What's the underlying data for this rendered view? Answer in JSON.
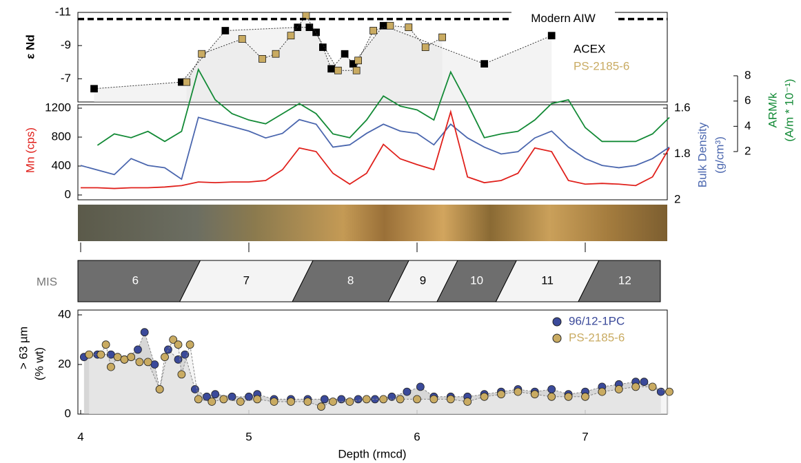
{
  "chart_data": [
    {
      "type": "line",
      "ylabel": "ε Nd",
      "xlim": [
        4,
        7.5
      ],
      "ylim": [
        -5.6,
        -11
      ],
      "yticks": [
        -11,
        -9,
        -7
      ],
      "reference_line": {
        "value": -10.6,
        "label": "Modern AIW"
      },
      "series": [
        {
          "name": "ACEX",
          "color": "#000000",
          "x": [
            4.08,
            4.6,
            4.86,
            5.29,
            5.36,
            5.4,
            5.44,
            5.49,
            5.57,
            5.62,
            5.8,
            6.4,
            6.8
          ],
          "values": [
            -6.4,
            -6.8,
            -9.9,
            -10.1,
            -10.1,
            -9.8,
            -8.9,
            -7.6,
            -8.5,
            -7.9,
            -10.2,
            -7.9,
            -9.6
          ]
        },
        {
          "name": "PS-2185-6",
          "color": "#c9ab62",
          "x": [
            4.63,
            4.72,
            4.96,
            5.08,
            5.16,
            5.25,
            5.34,
            5.53,
            5.64,
            5.65,
            5.74,
            5.84,
            5.95,
            6.05,
            6.15
          ],
          "values": [
            -6.8,
            -8.5,
            -9.4,
            -8.2,
            -8.5,
            -9.6,
            -10.8,
            -7.5,
            -7.5,
            -8.1,
            -9.9,
            -10.2,
            -10.1,
            -8.9,
            -9.5
          ]
        }
      ]
    },
    {
      "type": "multiline",
      "xlim": [
        4,
        7.5
      ],
      "x": [
        4.0,
        4.1,
        4.2,
        4.3,
        4.4,
        4.5,
        4.6,
        4.7,
        4.8,
        4.9,
        5.0,
        5.1,
        5.2,
        5.3,
        5.4,
        5.5,
        5.6,
        5.7,
        5.8,
        5.9,
        6.0,
        6.1,
        6.2,
        6.3,
        6.4,
        6.5,
        6.6,
        6.7,
        6.8,
        6.9,
        7.0,
        7.1,
        7.2,
        7.3,
        7.4,
        7.5
      ],
      "ylabel": "Mn (cps)",
      "ylim": [
        0,
        1200
      ],
      "yticks": [
        0,
        400,
        800,
        1200
      ],
      "y2label": [
        "Bulk Density",
        "(g/cm³)"
      ],
      "y2lim": [
        2.0,
        1.6
      ],
      "y2ticks": [
        1.6,
        1.8,
        2
      ],
      "y3label": [
        "ARM/k",
        "(A/m * 10⁻¹)"
      ],
      "y3lim": [
        2,
        8
      ],
      "y3ticks": [
        2,
        4,
        6,
        8
      ],
      "series": [
        {
          "name": "ARM/k",
          "color": "#138a36",
          "axis": "y3",
          "values": [
            null,
            2.5,
            3.4,
            3.1,
            3.6,
            2.8,
            3.6,
            8.5,
            6.1,
            5.0,
            4.5,
            4.2,
            5.0,
            5.8,
            5.0,
            3.4,
            3.1,
            4.5,
            6.4,
            5.6,
            5.3,
            4.5,
            8.3,
            5.8,
            3.1,
            3.4,
            3.6,
            4.5,
            5.8,
            6.1,
            3.9,
            2.8,
            2.8,
            2.8,
            3.4,
            4.7
          ]
        },
        {
          "name": "Bulk Density",
          "color": "#4a66ae",
          "axis": "y2",
          "values": [
            1.85,
            1.87,
            1.89,
            1.82,
            1.85,
            1.86,
            1.91,
            1.64,
            1.66,
            1.68,
            1.7,
            1.73,
            1.71,
            1.65,
            1.67,
            1.77,
            1.76,
            1.71,
            1.67,
            1.7,
            1.71,
            1.76,
            1.67,
            1.73,
            1.77,
            1.8,
            1.79,
            1.73,
            1.7,
            1.77,
            1.82,
            1.85,
            1.86,
            1.85,
            1.82,
            1.77
          ]
        },
        {
          "name": "Mn (cps)",
          "color": "#e0201b",
          "axis": "y",
          "values": [
            100,
            100,
            90,
            100,
            100,
            110,
            130,
            180,
            170,
            180,
            180,
            200,
            350,
            650,
            600,
            300,
            150,
            300,
            700,
            500,
            420,
            350,
            1150,
            250,
            170,
            200,
            300,
            650,
            600,
            200,
            150,
            160,
            150,
            130,
            250,
            650
          ]
        }
      ]
    },
    {
      "type": "band",
      "label": "MIS",
      "stages": [
        "6",
        "7",
        "8",
        "9",
        "10",
        "11",
        "12"
      ],
      "boundaries": [
        4,
        4.65,
        5.32,
        5.89,
        6.18,
        6.53,
        7.02,
        7.45
      ]
    },
    {
      "type": "scatter",
      "xlabel": "Depth (rmcd)",
      "ylabel": [
        "> 63 µm",
        "(% wt)"
      ],
      "xlim": [
        4,
        7.5
      ],
      "xticks": [
        4,
        5,
        6,
        7
      ],
      "ylim": [
        0,
        40
      ],
      "yticks": [
        0,
        20,
        40
      ],
      "series": [
        {
          "name": "96/12-1PC",
          "color": "#3b4a9a",
          "x": [
            4.02,
            4.1,
            4.18,
            4.26,
            4.34,
            4.38,
            4.44,
            4.47,
            4.52,
            4.58,
            4.62,
            4.68,
            4.75,
            4.8,
            4.9,
            5.0,
            5.05,
            5.15,
            5.25,
            5.35,
            5.45,
            5.55,
            5.65,
            5.75,
            5.85,
            5.94,
            6.02,
            6.1,
            6.2,
            6.3,
            6.4,
            6.5,
            6.6,
            6.7,
            6.8,
            6.9,
            7.0,
            7.1,
            7.2,
            7.3,
            7.35,
            7.45
          ],
          "values": [
            23,
            24,
            24,
            22,
            26,
            33,
            20,
            10,
            26,
            22,
            24,
            10,
            7,
            8,
            7,
            7,
            8,
            6,
            6,
            6,
            6,
            6,
            6,
            6,
            7,
            9,
            11,
            7,
            7,
            7,
            8,
            9,
            10,
            9,
            10,
            8,
            9,
            11,
            12,
            13,
            13,
            9
          ]
        },
        {
          "name": "PS-2185-6",
          "color": "#c9ab62",
          "x": [
            4.05,
            4.12,
            4.15,
            4.18,
            4.22,
            4.26,
            4.3,
            4.35,
            4.4,
            4.47,
            4.5,
            4.55,
            4.58,
            4.6,
            4.65,
            4.7,
            4.78,
            4.85,
            4.95,
            5.05,
            5.15,
            5.25,
            5.35,
            5.43,
            5.5,
            5.6,
            5.7,
            5.8,
            5.9,
            6.0,
            6.1,
            6.2,
            6.3,
            6.4,
            6.5,
            6.6,
            6.7,
            6.8,
            6.9,
            7.0,
            7.1,
            7.2,
            7.3,
            7.4,
            7.5
          ],
          "values": [
            24,
            24,
            28,
            19,
            23,
            22,
            23,
            21,
            21,
            10,
            23,
            30,
            28,
            16,
            28,
            6,
            5,
            6,
            5,
            6,
            5,
            5,
            5,
            3,
            5,
            5,
            6,
            6,
            6,
            6,
            6,
            6,
            5,
            7,
            8,
            9,
            8,
            7,
            7,
            7,
            9,
            10,
            11,
            11,
            9
          ]
        }
      ]
    }
  ]
}
